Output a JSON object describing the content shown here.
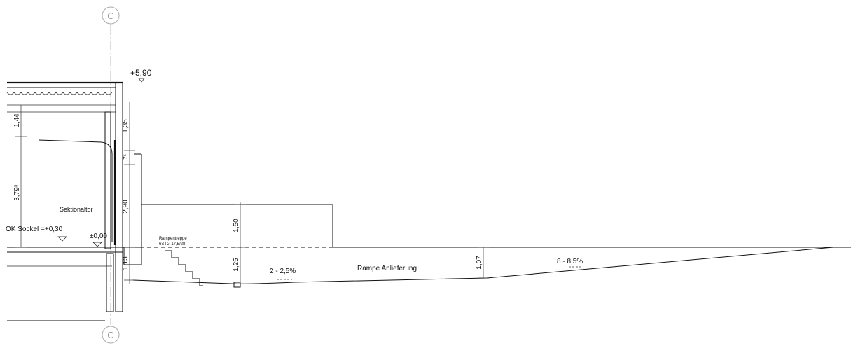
{
  "grid_marks": [
    "C",
    "C"
  ],
  "levels": [
    "+5,90",
    "OK Sockel =+0,30",
    "±0,00"
  ],
  "dimensions": [
    "1,44",
    "3,79⁵",
    "1,35",
    ",7⁵",
    "2,90",
    "1,13",
    "1,50",
    "1,25",
    "1,07"
  ],
  "labels": [
    "Sektionaltor",
    "Rampentreppe",
    "6STG 17,5/28",
    "2 - 2,5%",
    "Rampe Anlieferung",
    "8 - 8,5%"
  ]
}
